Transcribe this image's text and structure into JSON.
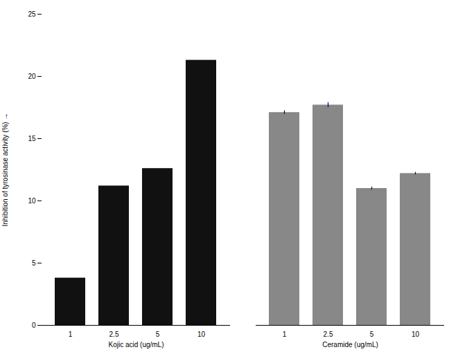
{
  "chart_data": {
    "type": "bar",
    "ylabel": "Inhibition of tyrosinase activity (%)",
    "categories": [
      "1",
      "2.5",
      "5",
      "10"
    ],
    "series": [
      {
        "name": "Kojic acid (ug/mL)",
        "color": "#111111",
        "values": [
          3.8,
          11.2,
          12.6,
          21.3
        ],
        "errors": [
          0.0,
          0.0,
          0.0,
          0.0
        ]
      },
      {
        "name": "Ceramide (ug/mL)",
        "color": "#888888",
        "values": [
          17.1,
          17.7,
          11.0,
          12.2
        ],
        "errors": [
          0.15,
          0.2,
          0.12,
          0.1
        ]
      }
    ],
    "error_color": "#000055",
    "ylim": [
      0,
      25
    ],
    "yticks": [
      0,
      5,
      10,
      15,
      20,
      25
    ],
    "grid": false
  }
}
